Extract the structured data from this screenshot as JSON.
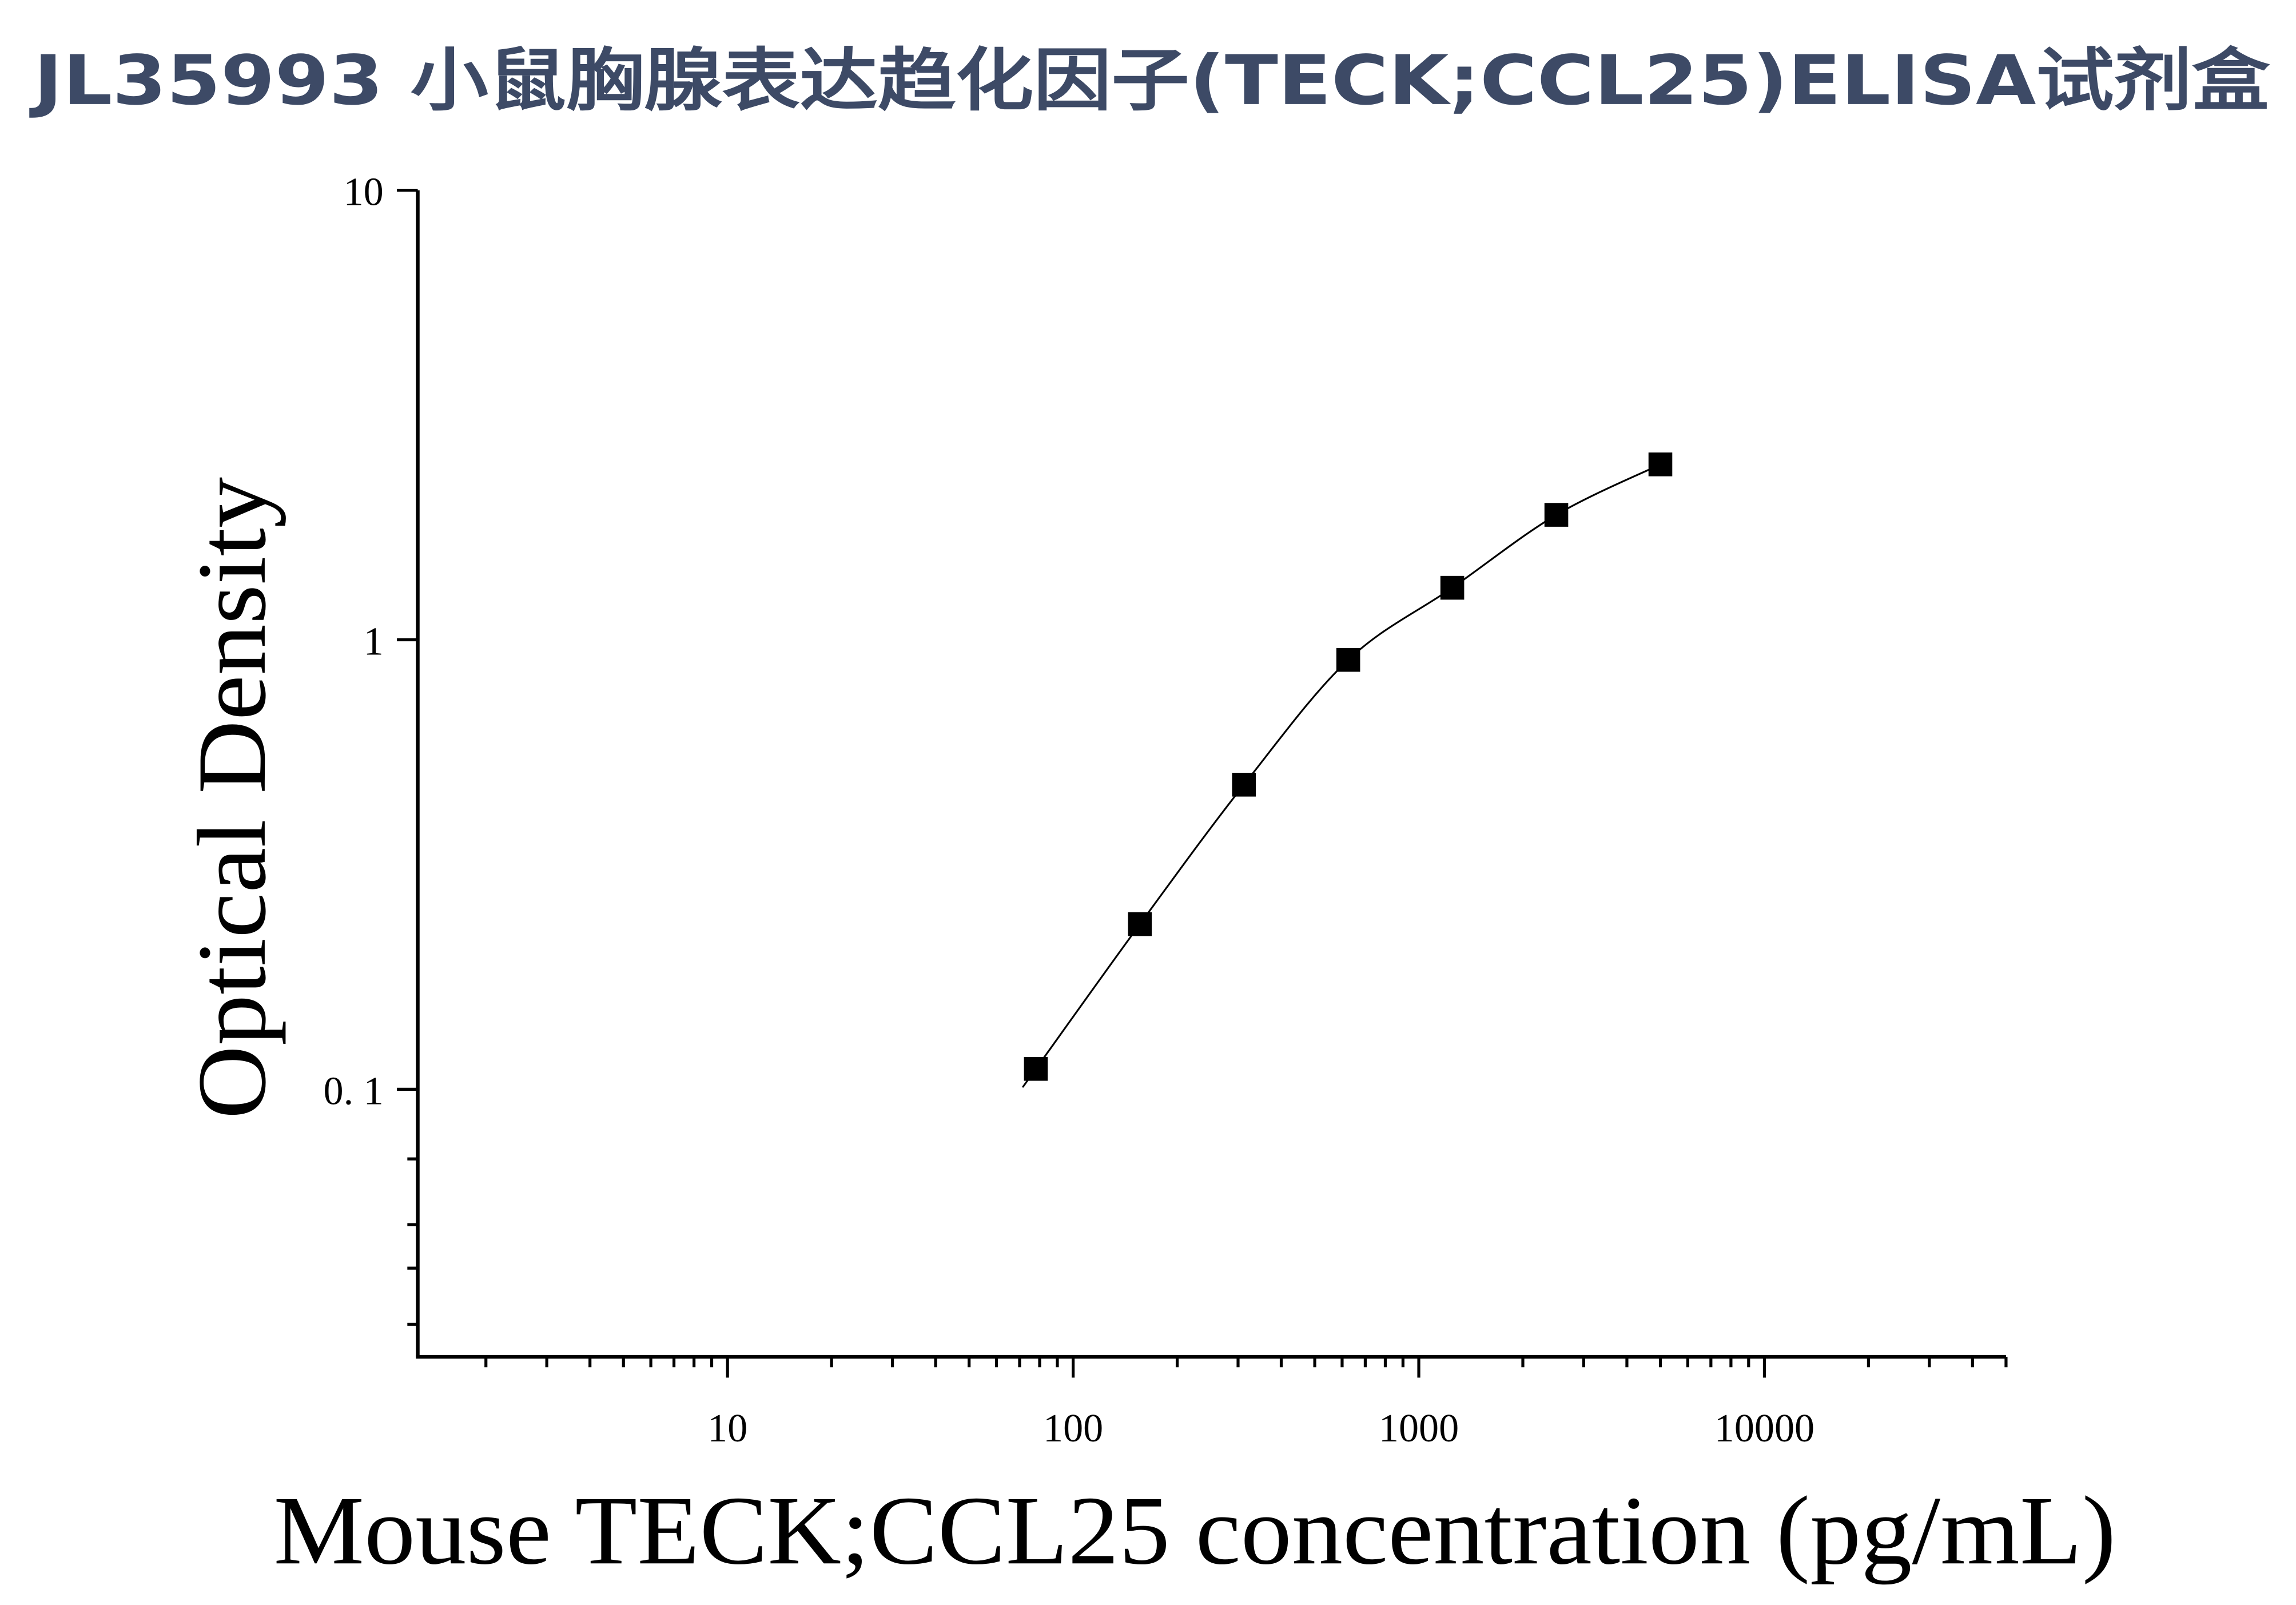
{
  "colors": {
    "title": "#3d4a66",
    "axis": "#000000",
    "marker": "#000000",
    "curve": "#000000"
  },
  "chart_data": {
    "type": "scatter",
    "title": "JL35993 小鼠胸腺表达趋化因子(TECK;CCL25)ELISA试剂盒",
    "xlabel": "Mouse TECK;CCL25 concentration (pg/mL)",
    "ylabel": "Optical Density",
    "x_scale": "log",
    "y_scale": "log",
    "xlim": [
      1.27,
      50000
    ],
    "ylim": [
      0.0254,
      10
    ],
    "grid": false,
    "legend": "none",
    "x_ticks": [
      {
        "value": 10,
        "label": "10"
      },
      {
        "value": 100,
        "label": "100"
      },
      {
        "value": 1000,
        "label": "1000"
      },
      {
        "value": 10000,
        "label": "10000"
      }
    ],
    "y_ticks": [
      {
        "value": 10,
        "label": "10"
      },
      {
        "value": 1,
        "label": "1"
      },
      {
        "value": 0.1,
        "label": "0. 1"
      }
    ],
    "series": [
      {
        "marker": "square",
        "fit_curve": true,
        "points": [
          {
            "x": 78,
            "y": 0.111
          },
          {
            "x": 156,
            "y": 0.233
          },
          {
            "x": 312,
            "y": 0.476
          },
          {
            "x": 625,
            "y": 0.902
          },
          {
            "x": 1250,
            "y": 1.305
          },
          {
            "x": 2500,
            "y": 1.896
          },
          {
            "x": 5000,
            "y": 2.455
          }
        ]
      }
    ]
  }
}
